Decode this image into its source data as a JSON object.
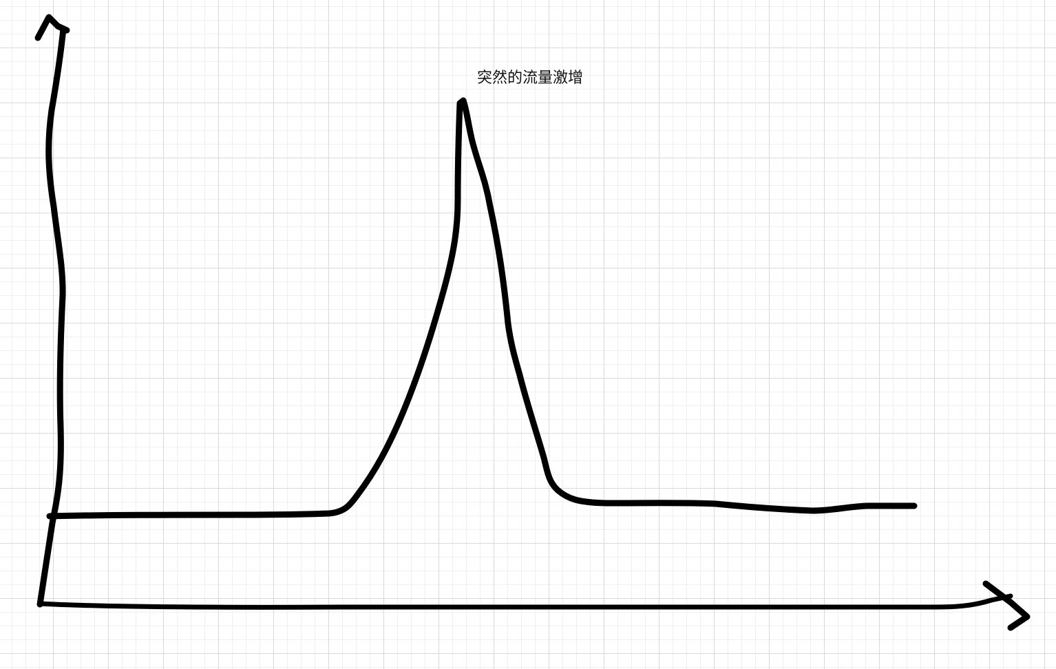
{
  "whiteboard": {
    "annotation_text": "突然的流量激增",
    "ink_color": "#000000",
    "grid_color": "#d9d9d9",
    "background_color": "#ffffff"
  },
  "sketch": {
    "description_type": "hand-drawn line sketch",
    "y_axis_icon": "arrow-up-icon",
    "x_axis_icon": "arrow-right-icon"
  }
}
